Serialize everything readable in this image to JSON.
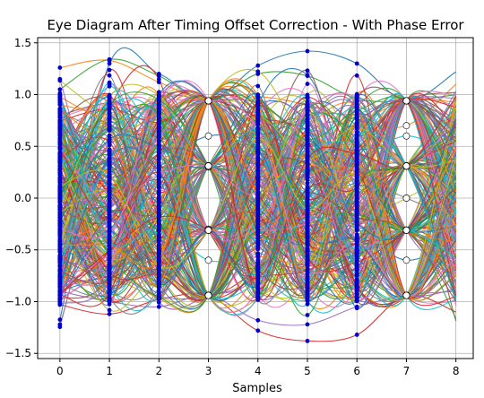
{
  "chart_data": {
    "type": "line",
    "title": "Eye Diagram After Timing Offset Correction - With Phase Error",
    "xlabel": "Samples",
    "ylabel": "",
    "xlim": [
      -0.45,
      8.35
    ],
    "ylim": [
      -1.55,
      1.55
    ],
    "xticks": [
      0,
      1,
      2,
      3,
      4,
      5,
      6,
      7,
      8
    ],
    "yticks": [
      -1.5,
      -1.0,
      -0.5,
      0.0,
      0.5,
      1.0,
      1.5
    ],
    "ytick_labels": [
      "−1.5",
      "−1.0",
      "−0.5",
      "0.0",
      "0.5",
      "1.0",
      "1.5"
    ],
    "grid": true,
    "legend": "none",
    "sample_points_x": [
      0,
      1,
      2,
      4,
      5,
      6
    ],
    "symbol_points_x": [
      3,
      7
    ],
    "sample_marker_color": "#0000cc",
    "symbol_marker_color": "#ffffff",
    "series_count": 300,
    "series": [
      {
        "values": [
          -1.01,
          1.3,
          1.2,
          0.94,
          1.28,
          1.42,
          1.3,
          0.94,
          1.22
        ]
      },
      {
        "values": [
          1.26,
          1.33,
          1.12,
          0.94,
          0.98,
          0.9,
          0.76,
          0.7,
          1.1
        ]
      },
      {
        "values": [
          1.05,
          1.34,
          1.18,
          0.94,
          1.2,
          1.18,
          0.96,
          0.94,
          1.0
        ]
      },
      {
        "values": [
          -1.03,
          -1.12,
          -0.98,
          -0.94,
          -1.28,
          -1.38,
          -1.32,
          -0.94,
          -1.1
        ]
      },
      {
        "values": [
          -0.9,
          -1.0,
          -1.05,
          -0.94,
          -1.18,
          -1.22,
          -1.05,
          -0.94,
          -0.9
        ]
      },
      {
        "values": [
          0.8,
          0.92,
          0.85,
          0.94,
          0.6,
          0.4,
          0.45,
          0.94,
          1.02
        ]
      },
      {
        "values": [
          -0.75,
          -0.82,
          -0.7,
          -0.94,
          -0.55,
          -0.3,
          -0.22,
          -0.94,
          -1.0
        ]
      },
      {
        "values": [
          0.1,
          -0.35,
          -0.6,
          -0.3,
          0.15,
          0.4,
          0.2,
          0.0,
          -0.2
        ]
      },
      {
        "values": [
          -0.2,
          0.3,
          0.55,
          0.3,
          -0.1,
          -0.45,
          -0.25,
          0.0,
          0.25
        ]
      },
      {
        "values": [
          0.55,
          0.2,
          -0.15,
          -0.6,
          -0.45,
          0.05,
          0.35,
          0.6,
          0.4
        ]
      },
      {
        "values": [
          -0.55,
          -0.1,
          0.3,
          0.6,
          0.5,
          0.0,
          -0.3,
          -0.6,
          -0.4
        ]
      }
    ]
  }
}
